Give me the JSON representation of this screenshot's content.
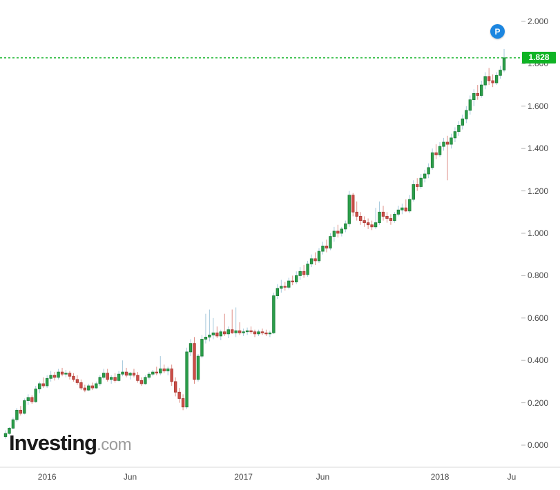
{
  "price_line": {
    "label": "1.828",
    "color": "#0fb324"
  },
  "badge": {
    "label": "P",
    "color": "#1c86e0"
  },
  "logo": {
    "main": "Investing",
    "suffix": ".com"
  },
  "chart_data": {
    "type": "candlestick",
    "title": "",
    "xlabel": "",
    "ylabel": "",
    "ylim": [
      0.0,
      2.05
    ],
    "grid": false,
    "legend": "none",
    "last_price": 1.828,
    "y_ticks": [
      2.0,
      1.8,
      1.6,
      1.4,
      1.2,
      1.0,
      0.8,
      0.6,
      0.4,
      0.2,
      0.0
    ],
    "x_ticks": [
      {
        "label": "2016",
        "index": 11
      },
      {
        "label": "Jun",
        "index": 33
      },
      {
        "label": "2017",
        "index": 63
      },
      {
        "label": "Jun",
        "index": 84
      },
      {
        "label": "2018",
        "index": 115
      },
      {
        "label": "Ju",
        "index": 134
      }
    ],
    "colors": {
      "up_fill": "#2b9e4a",
      "up_border": "#1b7d37",
      "down_fill": "#cc4e48",
      "down_border": "#a83a34",
      "wick_up": "#a4c8dc",
      "wick_down": "#de8e86"
    },
    "candles": [
      [
        0.04,
        0.07,
        0.03,
        0.055
      ],
      [
        0.055,
        0.085,
        0.05,
        0.08
      ],
      [
        0.08,
        0.13,
        0.075,
        0.12
      ],
      [
        0.12,
        0.175,
        0.11,
        0.165
      ],
      [
        0.165,
        0.185,
        0.14,
        0.15
      ],
      [
        0.15,
        0.22,
        0.145,
        0.21
      ],
      [
        0.21,
        0.24,
        0.19,
        0.225
      ],
      [
        0.225,
        0.235,
        0.195,
        0.205
      ],
      [
        0.205,
        0.28,
        0.2,
        0.265
      ],
      [
        0.265,
        0.3,
        0.245,
        0.29
      ],
      [
        0.29,
        0.32,
        0.27,
        0.28
      ],
      [
        0.28,
        0.33,
        0.27,
        0.315
      ],
      [
        0.315,
        0.35,
        0.3,
        0.33
      ],
      [
        0.33,
        0.345,
        0.305,
        0.32
      ],
      [
        0.32,
        0.36,
        0.31,
        0.345
      ],
      [
        0.345,
        0.365,
        0.325,
        0.335
      ],
      [
        0.335,
        0.355,
        0.32,
        0.34
      ],
      [
        0.34,
        0.35,
        0.31,
        0.325
      ],
      [
        0.325,
        0.34,
        0.3,
        0.31
      ],
      [
        0.31,
        0.33,
        0.285,
        0.295
      ],
      [
        0.295,
        0.31,
        0.26,
        0.27
      ],
      [
        0.27,
        0.285,
        0.25,
        0.26
      ],
      [
        0.26,
        0.29,
        0.255,
        0.28
      ],
      [
        0.28,
        0.295,
        0.26,
        0.27
      ],
      [
        0.27,
        0.3,
        0.265,
        0.29
      ],
      [
        0.29,
        0.33,
        0.28,
        0.32
      ],
      [
        0.32,
        0.36,
        0.31,
        0.34
      ],
      [
        0.34,
        0.36,
        0.3,
        0.31
      ],
      [
        0.31,
        0.33,
        0.29,
        0.32
      ],
      [
        0.32,
        0.34,
        0.295,
        0.305
      ],
      [
        0.305,
        0.35,
        0.3,
        0.335
      ],
      [
        0.335,
        0.4,
        0.325,
        0.345
      ],
      [
        0.345,
        0.365,
        0.32,
        0.33
      ],
      [
        0.33,
        0.345,
        0.31,
        0.34
      ],
      [
        0.34,
        0.36,
        0.32,
        0.33
      ],
      [
        0.33,
        0.345,
        0.295,
        0.305
      ],
      [
        0.305,
        0.32,
        0.28,
        0.29
      ],
      [
        0.29,
        0.33,
        0.285,
        0.32
      ],
      [
        0.32,
        0.345,
        0.31,
        0.335
      ],
      [
        0.335,
        0.355,
        0.325,
        0.345
      ],
      [
        0.345,
        0.37,
        0.33,
        0.34
      ],
      [
        0.34,
        0.42,
        0.33,
        0.36
      ],
      [
        0.36,
        0.38,
        0.34,
        0.35
      ],
      [
        0.35,
        0.37,
        0.33,
        0.36
      ],
      [
        0.36,
        0.38,
        0.28,
        0.3
      ],
      [
        0.3,
        0.32,
        0.23,
        0.25
      ],
      [
        0.25,
        0.27,
        0.2,
        0.22
      ],
      [
        0.22,
        0.24,
        0.165,
        0.18
      ],
      [
        0.18,
        0.46,
        0.17,
        0.44
      ],
      [
        0.44,
        0.5,
        0.42,
        0.48
      ],
      [
        0.48,
        0.51,
        0.29,
        0.31
      ],
      [
        0.31,
        0.43,
        0.3,
        0.42
      ],
      [
        0.42,
        0.52,
        0.41,
        0.5
      ],
      [
        0.5,
        0.62,
        0.48,
        0.51
      ],
      [
        0.51,
        0.64,
        0.49,
        0.52
      ],
      [
        0.52,
        0.6,
        0.5,
        0.53
      ],
      [
        0.53,
        0.56,
        0.505,
        0.515
      ],
      [
        0.515,
        0.545,
        0.495,
        0.535
      ],
      [
        0.535,
        0.62,
        0.515,
        0.525
      ],
      [
        0.525,
        0.56,
        0.505,
        0.545
      ],
      [
        0.545,
        0.64,
        0.525,
        0.53
      ],
      [
        0.53,
        0.65,
        0.51,
        0.54
      ],
      [
        0.54,
        0.58,
        0.52,
        0.53
      ],
      [
        0.53,
        0.55,
        0.515,
        0.535
      ],
      [
        0.535,
        0.555,
        0.52,
        0.54
      ],
      [
        0.54,
        0.56,
        0.525,
        0.535
      ],
      [
        0.535,
        0.545,
        0.51,
        0.525
      ],
      [
        0.525,
        0.545,
        0.515,
        0.535
      ],
      [
        0.535,
        0.55,
        0.52,
        0.53
      ],
      [
        0.53,
        0.545,
        0.515,
        0.525
      ],
      [
        0.525,
        0.54,
        0.51,
        0.53
      ],
      [
        0.53,
        0.72,
        0.525,
        0.705
      ],
      [
        0.705,
        0.76,
        0.69,
        0.74
      ],
      [
        0.74,
        0.78,
        0.72,
        0.75
      ],
      [
        0.75,
        0.77,
        0.73,
        0.745
      ],
      [
        0.745,
        0.79,
        0.735,
        0.775
      ],
      [
        0.775,
        0.8,
        0.755,
        0.77
      ],
      [
        0.77,
        0.82,
        0.76,
        0.8
      ],
      [
        0.8,
        0.84,
        0.78,
        0.82
      ],
      [
        0.82,
        0.85,
        0.79,
        0.805
      ],
      [
        0.805,
        0.87,
        0.795,
        0.855
      ],
      [
        0.855,
        0.9,
        0.84,
        0.88
      ],
      [
        0.88,
        0.91,
        0.85,
        0.87
      ],
      [
        0.87,
        0.93,
        0.86,
        0.915
      ],
      [
        0.915,
        0.96,
        0.9,
        0.94
      ],
      [
        0.94,
        0.97,
        0.91,
        0.93
      ],
      [
        0.93,
        1.0,
        0.92,
        0.985
      ],
      [
        0.985,
        1.03,
        0.96,
        1.01
      ],
      [
        1.01,
        1.04,
        0.98,
        1.0
      ],
      [
        1.0,
        1.03,
        0.985,
        1.02
      ],
      [
        1.02,
        1.06,
        1.005,
        1.045
      ],
      [
        1.045,
        1.2,
        1.03,
        1.18
      ],
      [
        1.18,
        1.19,
        1.08,
        1.1
      ],
      [
        1.1,
        1.15,
        1.06,
        1.08
      ],
      [
        1.08,
        1.1,
        1.04,
        1.06
      ],
      [
        1.06,
        1.08,
        1.03,
        1.05
      ],
      [
        1.05,
        1.07,
        1.02,
        1.04
      ],
      [
        1.04,
        1.06,
        1.015,
        1.03
      ],
      [
        1.03,
        1.12,
        1.02,
        1.05
      ],
      [
        1.05,
        1.15,
        1.04,
        1.1
      ],
      [
        1.1,
        1.13,
        1.06,
        1.08
      ],
      [
        1.08,
        1.1,
        1.05,
        1.07
      ],
      [
        1.07,
        1.09,
        1.04,
        1.06
      ],
      [
        1.06,
        1.1,
        1.05,
        1.09
      ],
      [
        1.09,
        1.13,
        1.08,
        1.11
      ],
      [
        1.11,
        1.14,
        1.09,
        1.12
      ],
      [
        1.12,
        1.16,
        1.1,
        1.105
      ],
      [
        1.105,
        1.18,
        1.095,
        1.16
      ],
      [
        1.16,
        1.25,
        1.15,
        1.23
      ],
      [
        1.23,
        1.26,
        1.2,
        1.22
      ],
      [
        1.22,
        1.28,
        1.21,
        1.26
      ],
      [
        1.26,
        1.3,
        1.24,
        1.28
      ],
      [
        1.28,
        1.33,
        1.26,
        1.31
      ],
      [
        1.31,
        1.4,
        1.3,
        1.38
      ],
      [
        1.38,
        1.42,
        1.35,
        1.37
      ],
      [
        1.37,
        1.43,
        1.36,
        1.41
      ],
      [
        1.41,
        1.45,
        1.39,
        1.43
      ],
      [
        1.43,
        1.46,
        1.25,
        1.42
      ],
      [
        1.42,
        1.47,
        1.4,
        1.45
      ],
      [
        1.45,
        1.5,
        1.43,
        1.48
      ],
      [
        1.48,
        1.53,
        1.46,
        1.51
      ],
      [
        1.51,
        1.56,
        1.49,
        1.54
      ],
      [
        1.54,
        1.6,
        1.52,
        1.58
      ],
      [
        1.58,
        1.65,
        1.56,
        1.63
      ],
      [
        1.63,
        1.68,
        1.6,
        1.66
      ],
      [
        1.66,
        1.7,
        1.63,
        1.65
      ],
      [
        1.65,
        1.72,
        1.64,
        1.7
      ],
      [
        1.7,
        1.76,
        1.68,
        1.74
      ],
      [
        1.74,
        1.78,
        1.7,
        1.72
      ],
      [
        1.72,
        1.75,
        1.69,
        1.71
      ],
      [
        1.71,
        1.76,
        1.7,
        1.745
      ],
      [
        1.745,
        1.79,
        1.73,
        1.77
      ],
      [
        1.77,
        1.87,
        1.76,
        1.828
      ]
    ]
  }
}
